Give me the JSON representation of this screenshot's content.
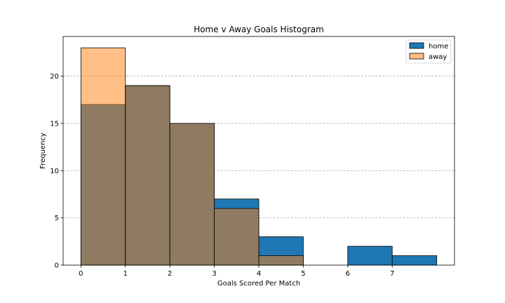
{
  "chart_data": {
    "type": "bar",
    "title": "Home v Away Goals Histogram",
    "xlabel": "Goals Scored Per Match",
    "ylabel": "Frequency",
    "xlim": [
      -0.4,
      8.4
    ],
    "ylim": [
      0,
      24.2
    ],
    "xticks": [
      0,
      1,
      2,
      3,
      4,
      5,
      6,
      7
    ],
    "yticks": [
      0,
      5,
      10,
      15,
      20
    ],
    "grid": "y-dashed",
    "legend_position": "top-right",
    "bins": [
      [
        0,
        1
      ],
      [
        1,
        2
      ],
      [
        2,
        3
      ],
      [
        3,
        4
      ],
      [
        4,
        5
      ],
      [
        5,
        6
      ],
      [
        6,
        7
      ],
      [
        7,
        8
      ]
    ],
    "series": [
      {
        "name": "home",
        "color": "#1f77b4",
        "values": [
          17,
          19,
          15,
          7,
          3,
          0,
          2,
          1
        ]
      },
      {
        "name": "away",
        "color": "#ff7f0e",
        "alpha": 0.5,
        "values": [
          23,
          19,
          15,
          6,
          1,
          0,
          0,
          0
        ]
      }
    ]
  }
}
